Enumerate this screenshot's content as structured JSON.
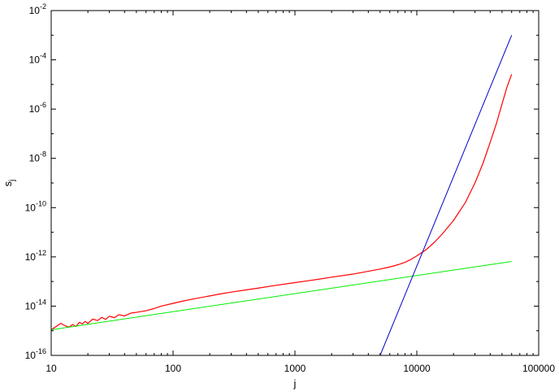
{
  "chart_data": {
    "type": "line",
    "title": "",
    "xlabel": "j",
    "ylabel": "s",
    "ylabel_subscript": "j",
    "xscale": "log",
    "yscale": "log",
    "xlim": [
      10,
      100000
    ],
    "ylim": [
      1e-16,
      0.01
    ],
    "grid": false,
    "legend": "none",
    "x_ticks": [
      {
        "value": 10,
        "label": "10"
      },
      {
        "value": 100,
        "label": "100"
      },
      {
        "value": 1000,
        "label": "1000"
      },
      {
        "value": 10000,
        "label": "10000"
      },
      {
        "value": 100000,
        "label": "100000"
      }
    ],
    "y_ticks": [
      {
        "value": 1e-16,
        "base": "10",
        "exp": "-16"
      },
      {
        "value": 1e-14,
        "base": "10",
        "exp": "-14"
      },
      {
        "value": 1e-12,
        "base": "10",
        "exp": "-12"
      },
      {
        "value": 1e-10,
        "base": "10",
        "exp": "-10"
      },
      {
        "value": 1e-08,
        "base": "10",
        "exp": "-8"
      },
      {
        "value": 1e-06,
        "base": "10",
        "exp": "-6"
      },
      {
        "value": 0.0001,
        "base": "10",
        "exp": "-4"
      },
      {
        "value": 0.01,
        "base": "10",
        "exp": "-2"
      }
    ],
    "series": [
      {
        "color": "#ff0000",
        "x": [
          10,
          11,
          12,
          13,
          14,
          15,
          16,
          17,
          18,
          19,
          20,
          22,
          24,
          26,
          28,
          30,
          33,
          36,
          40,
          45,
          50,
          60,
          70,
          80,
          100,
          120,
          150,
          200,
          250,
          300,
          400,
          500,
          700,
          1000,
          1500,
          2000,
          3000,
          4000,
          5000,
          6000,
          7000,
          8000,
          9000,
          10000,
          12000,
          14000,
          16000,
          18000,
          20000,
          25000,
          30000,
          35000,
          40000,
          45000,
          50000,
          55000,
          60000
        ],
        "y": [
          1.1e-15,
          1.5e-15,
          2e-15,
          1.6e-15,
          1.4e-15,
          1.8e-15,
          1.5e-15,
          2.2e-15,
          1.9e-15,
          2.4e-15,
          2e-15,
          3e-15,
          2.6e-15,
          3.5e-15,
          2.9e-15,
          3.9e-15,
          3.4e-15,
          4.5e-15,
          4e-15,
          5.2e-15,
          5.6e-15,
          6.5e-15,
          8e-15,
          1e-14,
          1.3e-14,
          1.6e-14,
          2e-14,
          2.6e-14,
          3.2e-14,
          3.7e-14,
          4.6e-14,
          5.4e-14,
          7e-14,
          9e-14,
          1.2e-13,
          1.5e-13,
          2e-13,
          2.6e-13,
          3.2e-13,
          3.9e-13,
          4.8e-13,
          6e-13,
          8e-13,
          1.1e-12,
          2e-12,
          4e-12,
          8e-12,
          1.6e-11,
          3e-11,
          1.6e-10,
          1e-09,
          6.5e-09,
          4.5e-08,
          2.6e-07,
          1.6e-06,
          8e-06,
          2.6e-05
        ]
      },
      {
        "color": "#00ee00",
        "x": [
          10,
          60000
        ],
        "y": [
          1.1e-15,
          6.5e-13
        ]
      },
      {
        "color": "#0000cc",
        "x": [
          5000,
          60000
        ],
        "y": [
          1e-16,
          0.001
        ]
      }
    ]
  }
}
